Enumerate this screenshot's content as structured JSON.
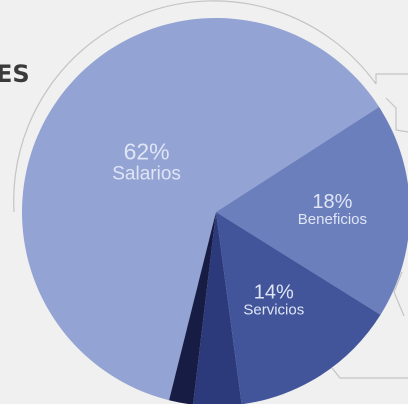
{
  "heading_fragment": "ES",
  "colors": {
    "background": "#f0f0f0",
    "heading": "#3a3a3a",
    "label": "#dfe5f5",
    "bracket": "#c4c4c4"
  },
  "chart_data": {
    "type": "pie",
    "title": "",
    "slices": [
      {
        "pct_label": "62%",
        "name": "Salarios",
        "value": 62,
        "color": "#93a3d4"
      },
      {
        "pct_label": "18%",
        "name": "Beneficios",
        "value": 18,
        "color": "#6c7fbd"
      },
      {
        "pct_label": "14%",
        "name": "Servicios",
        "value": 14,
        "color": "#42559a"
      },
      {
        "pct_label": "",
        "name": "",
        "value": 4,
        "color": "#2c3a7c"
      },
      {
        "pct_label": "",
        "name": "",
        "value": 2,
        "color": "#161c44"
      }
    ]
  }
}
